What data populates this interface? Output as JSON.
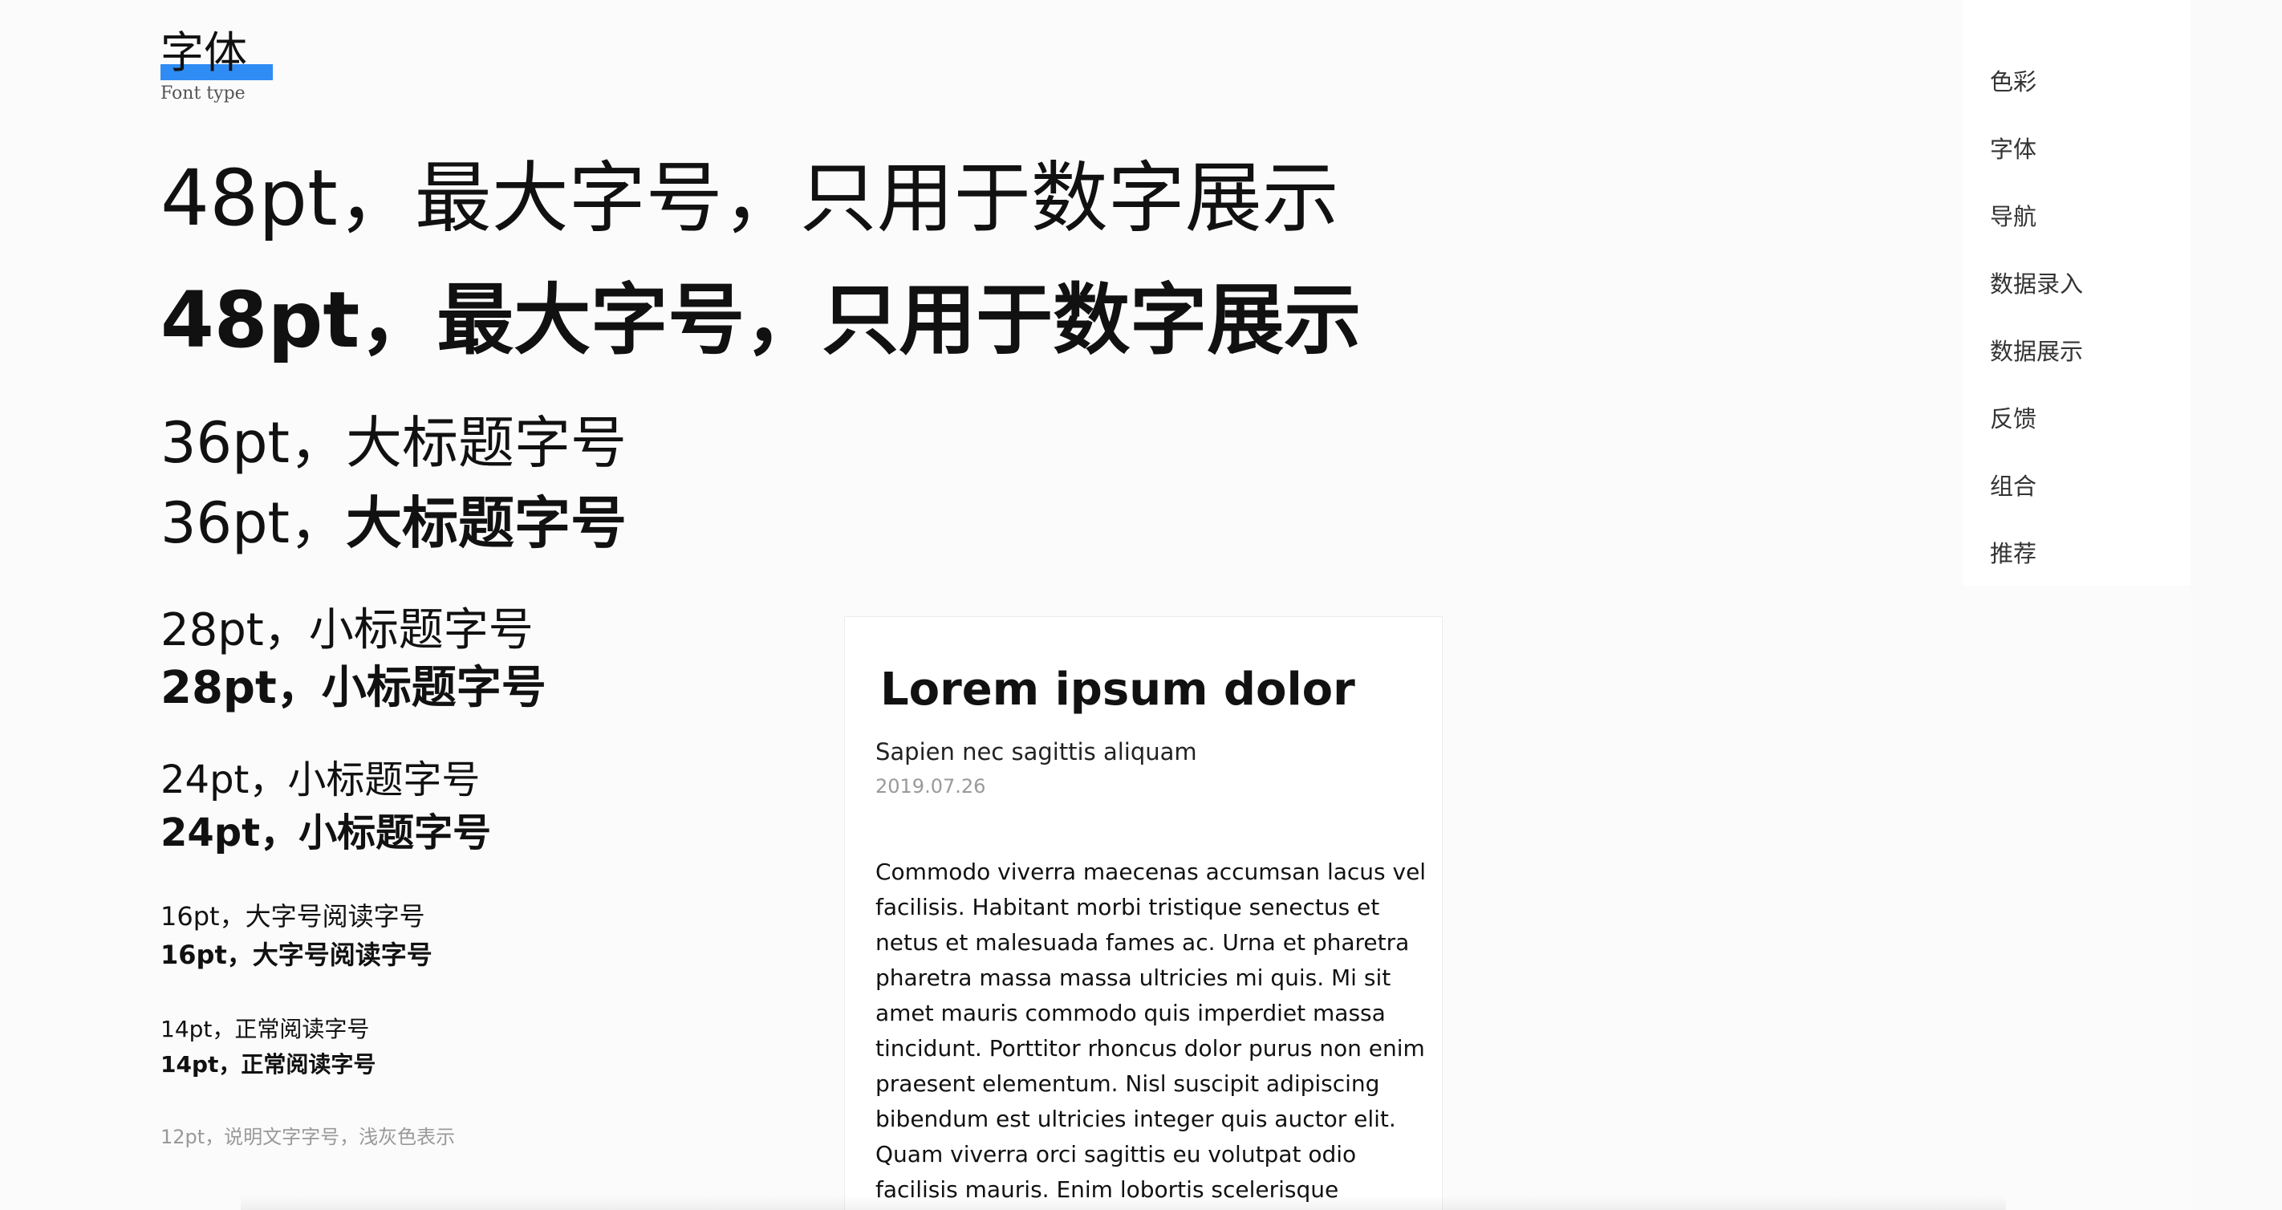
{
  "section": {
    "title": "字体",
    "subtitle": "Font type",
    "accent_color": "#2f8cf5"
  },
  "type_samples": {
    "s48_regular": "48pt，最大字号，只用于数字展示",
    "s48_bold": "48pt，最大字号，只用于数字展示",
    "s36_regular": "36pt，大标题字号",
    "s36_mixed_prefix": "36pt，",
    "s36_mixed_bold": "大标题字号",
    "s28_regular": "28pt，小标题字号",
    "s28_bold": "28pt，小标题字号",
    "s24_regular": "24pt，小标题字号",
    "s24_bold": "24pt，小标题字号",
    "s16_regular": "16pt，大字号阅读字号",
    "s16_bold": "16pt，大字号阅读字号",
    "s14_regular": "14pt，正常阅读字号",
    "s14_bold": "14pt，正常阅读字号",
    "s12_caption": "12pt，说明文字字号，浅灰色表示"
  },
  "card": {
    "title": "Lorem ipsum dolor",
    "subtitle": "Sapien nec sagittis aliquam",
    "date": "2019.07.26",
    "body": "Commodo viverra maecenas accumsan lacus vel facilisis. Habitant morbi tristique senectus et netus et malesuada fames ac. Urna et pharetra pharetra massa massa ultricies mi quis. Mi sit amet mauris commodo quis imperdiet massa tincidunt. Porttitor rhoncus dolor purus non enim praesent elementum. Nisl suscipit adipiscing bibendum est ultricies integer quis auctor elit. Quam viverra orci sagittis eu volutpat odio facilisis mauris. Enim lobortis scelerisque fermentum dui faucibus in ornare"
  },
  "toc": {
    "items": [
      {
        "label": "色彩"
      },
      {
        "label": "字体"
      },
      {
        "label": "导航"
      },
      {
        "label": "数据录入"
      },
      {
        "label": "数据展示"
      },
      {
        "label": "反馈"
      },
      {
        "label": "组合"
      },
      {
        "label": "推荐"
      }
    ]
  }
}
